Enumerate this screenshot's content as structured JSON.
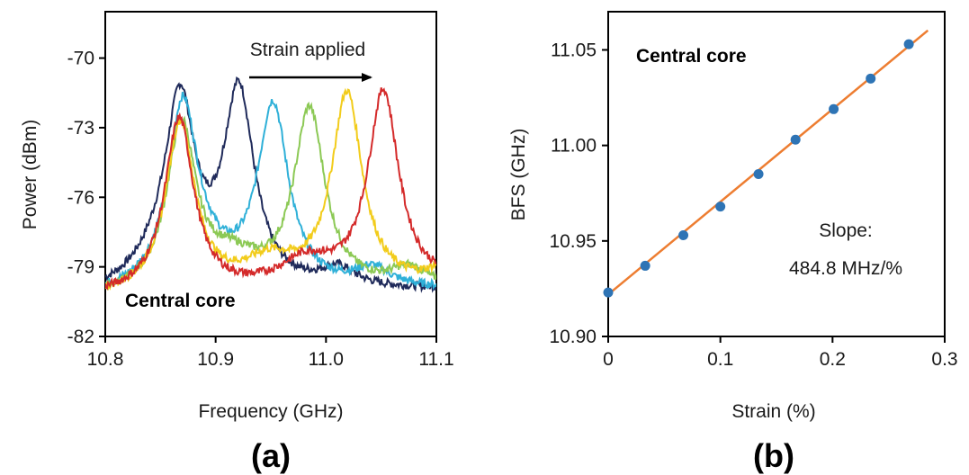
{
  "chart_data": [
    {
      "type": "line",
      "panel_label": "(a)",
      "xlabel": "Frequency (GHz)",
      "ylabel": "Power (dBm)",
      "xlim": [
        10.8,
        11.1
      ],
      "ylim": [
        -82,
        -68
      ],
      "x_ticks": [
        "10.8",
        "10.9",
        "11.0",
        "11.1"
      ],
      "y_ticks": [
        "-70",
        "-73",
        "-76",
        "-79",
        "-82"
      ],
      "annotation": "Strain applied",
      "core_label": "Central core",
      "spectrum_baseline": {
        "x": [
          10.8,
          11.1
        ],
        "y": [
          -80.3,
          -80.0
        ]
      },
      "series": [
        {
          "color": "#1f2a5a",
          "base_peak": {
            "x": 10.868,
            "y": -72.8
          },
          "peak": {
            "x": 10.921,
            "y": -71.8
          }
        },
        {
          "color": "#2fb0d8",
          "base_peak": {
            "x": 10.87,
            "y": -73.0
          },
          "peak": {
            "x": 10.952,
            "y": -72.3
          }
        },
        {
          "color": "#8cc955",
          "base_peak": {
            "x": 10.869,
            "y": -73.1
          },
          "peak": {
            "x": 10.985,
            "y": -72.4
          }
        },
        {
          "color": "#f2cc1b",
          "base_peak": {
            "x": 10.868,
            "y": -72.9
          },
          "peak": {
            "x": 11.019,
            "y": -71.7
          }
        },
        {
          "color": "#d42a2a",
          "base_peak": {
            "x": 10.867,
            "y": -72.7
          },
          "peak": {
            "x": 11.052,
            "y": -71.6
          }
        }
      ]
    },
    {
      "type": "scatter",
      "panel_label": "(b)",
      "xlabel": "Strain (%)",
      "ylabel": "BFS (GHz)",
      "xlim": [
        0,
        0.3
      ],
      "ylim": [
        10.9,
        11.07
      ],
      "x_ticks": [
        "0",
        "0.1",
        "0.2",
        "0.3"
      ],
      "y_ticks": [
        "11.05",
        "11.00",
        "10.95",
        "10.90"
      ],
      "core_label": "Central core",
      "slope_label": "Slope:",
      "slope_value": "484.8 MHz/%",
      "point_color": "#2e74b5",
      "fit_color": "#ed7d31",
      "fit_line": {
        "x": [
          0,
          0.285
        ],
        "y": [
          10.922,
          11.0602
        ]
      },
      "points": [
        {
          "x": 0.0,
          "y": 10.923
        },
        {
          "x": 0.033,
          "y": 10.937
        },
        {
          "x": 0.067,
          "y": 10.953
        },
        {
          "x": 0.1,
          "y": 10.968
        },
        {
          "x": 0.134,
          "y": 10.985
        },
        {
          "x": 0.167,
          "y": 11.003
        },
        {
          "x": 0.201,
          "y": 11.019
        },
        {
          "x": 0.234,
          "y": 11.035
        },
        {
          "x": 0.268,
          "y": 11.053
        }
      ]
    }
  ]
}
